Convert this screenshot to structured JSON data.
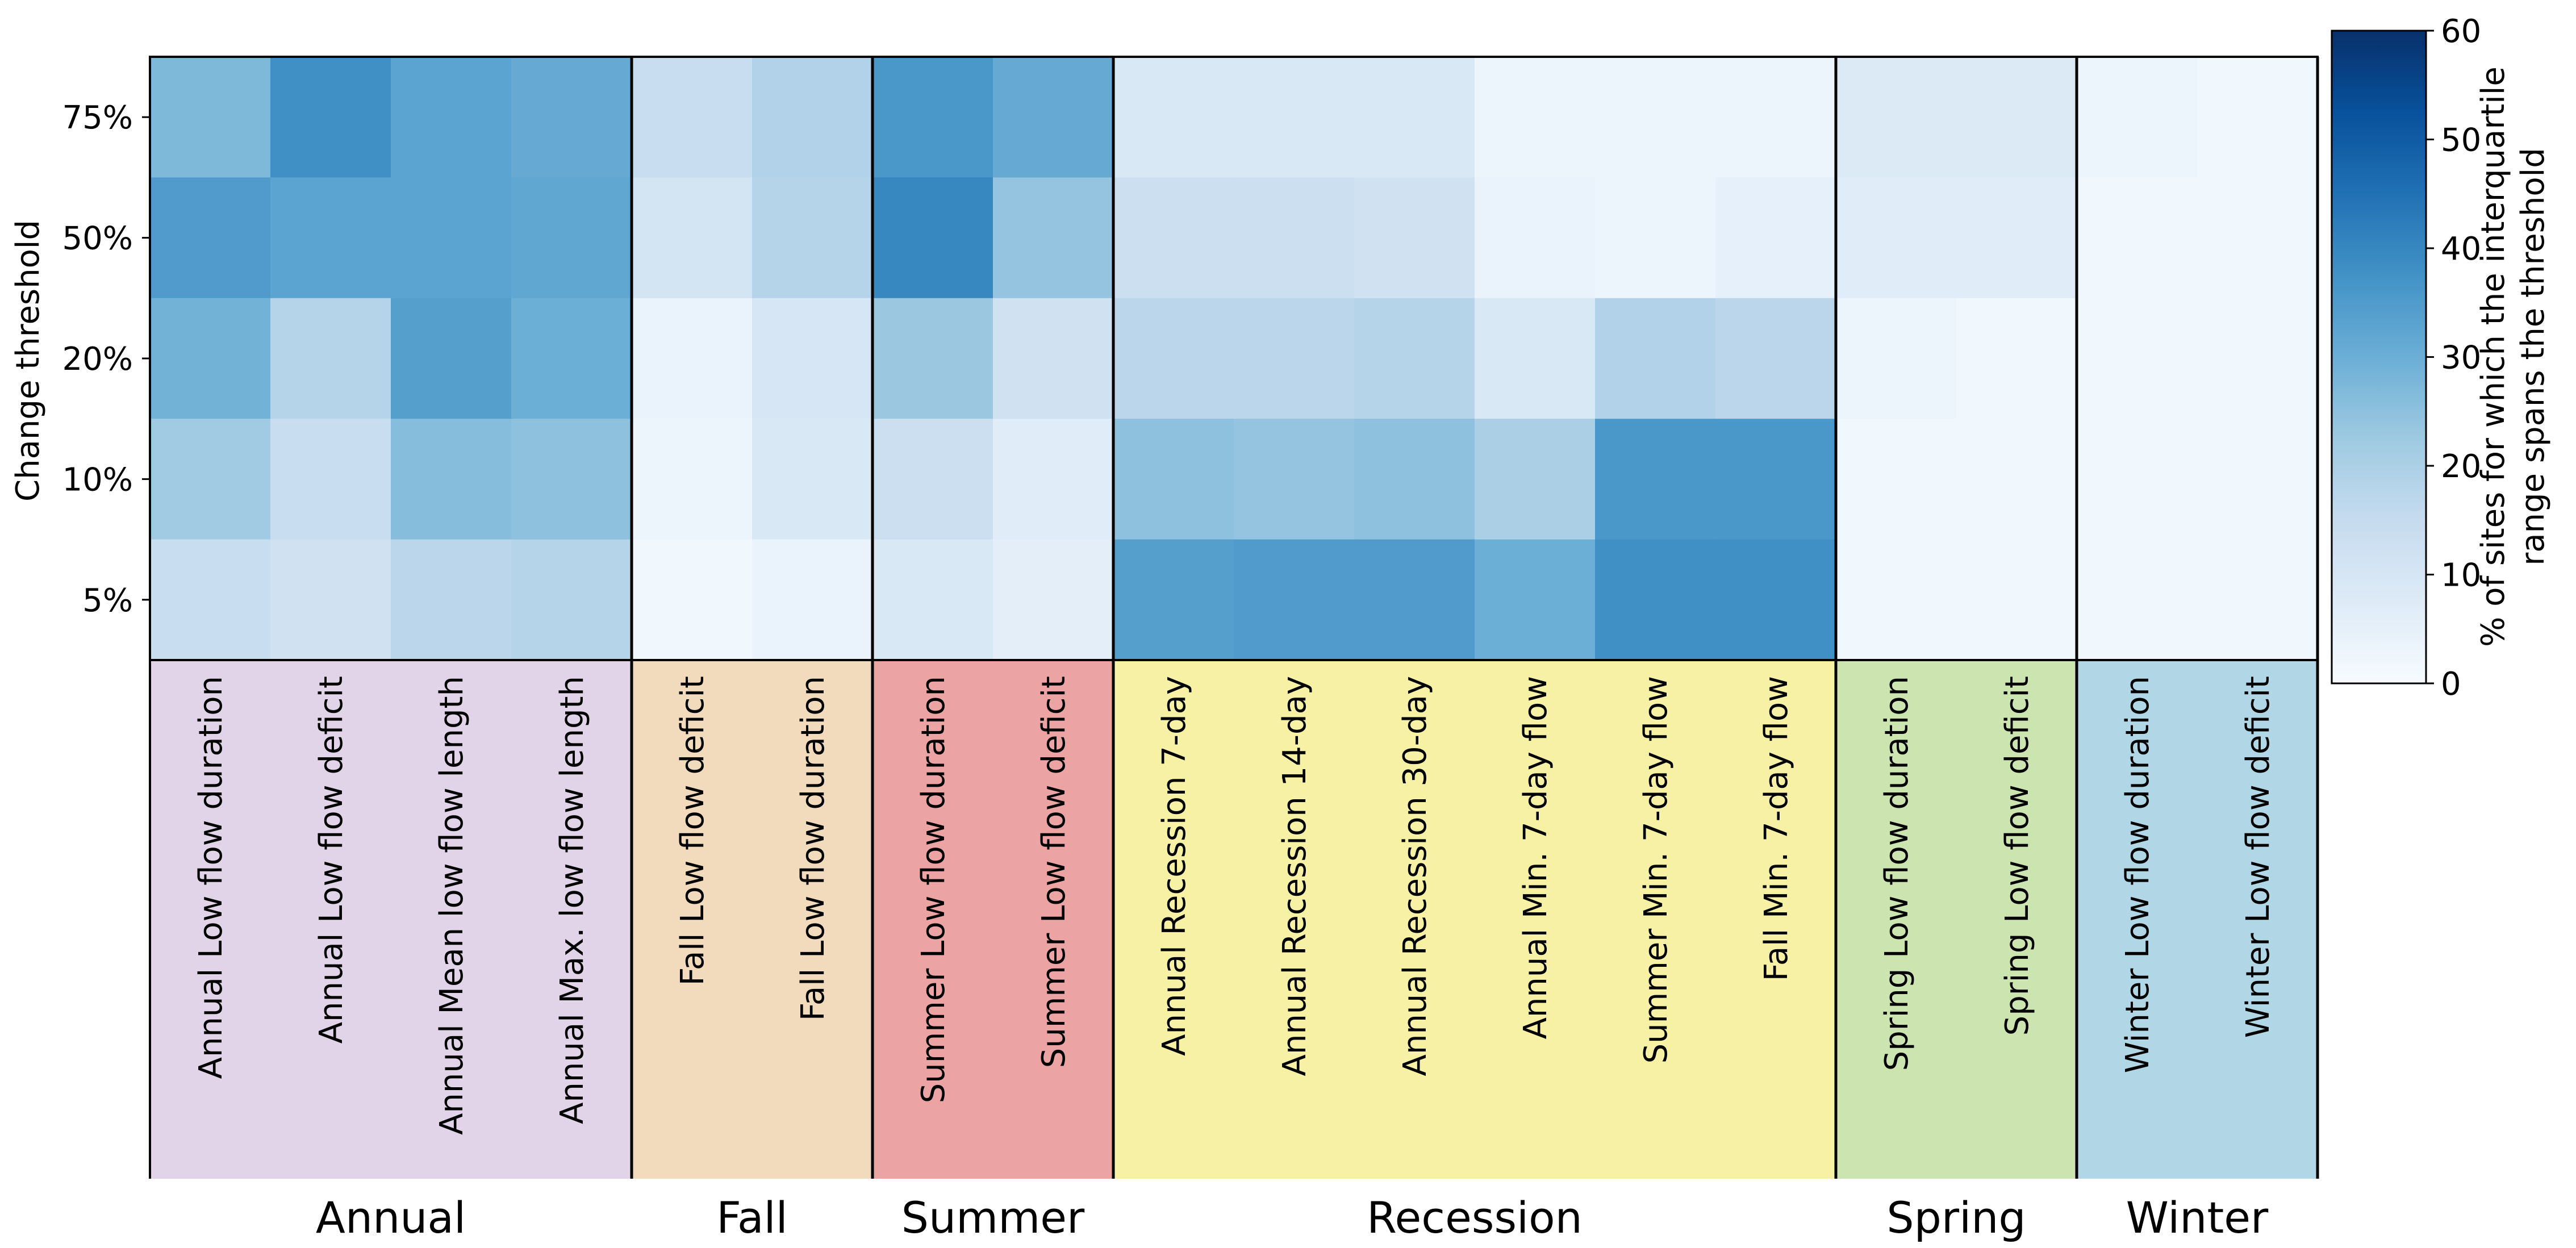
{
  "chart_data": {
    "type": "heatmap",
    "ylabel": "Change threshold",
    "y_categories": [
      "75%",
      "50%",
      "20%",
      "10%",
      "5%"
    ],
    "x_categories": [
      "Annual Low flow duration",
      "Annual Low flow deficit",
      "Annual Mean low flow length",
      "Annual Max. low flow length",
      "Fall Low flow deficit",
      "Fall Low flow duration",
      "Summer Low flow duration",
      "Summer Low flow deficit",
      "Annual Recession 7-day",
      "Annual Recession 14-day",
      "Annual Recession 30-day",
      "Annual Min. 7-day flow",
      "Summer Min. 7-day flow",
      "Fall Min. 7-day flow",
      "Spring Low flow duration",
      "Spring Low flow deficit",
      "Winter Low flow duration",
      "Winter Low flow deficit"
    ],
    "values": [
      [
        27,
        38,
        33,
        31,
        14,
        19,
        36,
        31,
        9,
        9,
        9,
        3,
        3,
        3,
        8,
        8,
        3,
        2
      ],
      [
        35,
        33,
        33,
        32,
        11,
        18,
        40,
        24,
        13,
        13,
        12,
        4,
        3,
        5,
        7,
        7,
        2,
        2
      ],
      [
        29,
        18,
        34,
        30,
        4,
        10,
        23,
        12,
        17,
        17,
        18,
        9,
        19,
        17,
        3,
        2,
        2,
        2
      ],
      [
        22,
        14,
        26,
        25,
        3,
        9,
        13,
        7,
        25,
        24,
        25,
        20,
        36,
        36,
        2,
        2,
        2,
        2
      ],
      [
        14,
        12,
        17,
        18,
        2,
        4,
        9,
        6,
        34,
        35,
        35,
        30,
        38,
        38,
        2,
        2,
        2,
        2
      ]
    ],
    "groups": [
      {
        "name": "Annual",
        "count": 4,
        "color": "#e1d4e8"
      },
      {
        "name": "Fall",
        "count": 2,
        "color": "#f2dbbc"
      },
      {
        "name": "Summer",
        "count": 2,
        "color": "#eba4a3"
      },
      {
        "name": "Recession",
        "count": 6,
        "color": "#f6f1a4"
      },
      {
        "name": "Spring",
        "count": 2,
        "color": "#cce4af"
      },
      {
        "name": "Winter",
        "count": 2,
        "color": "#b1d6e6"
      }
    ],
    "colorbar": {
      "label_lines": [
        "% of sites for which the interquartile",
        "range spans the threshold"
      ],
      "ticks": [
        0,
        10,
        20,
        30,
        40,
        50,
        60
      ],
      "range": [
        0,
        60
      ],
      "colormap": "Blues"
    },
    "grid": false
  }
}
